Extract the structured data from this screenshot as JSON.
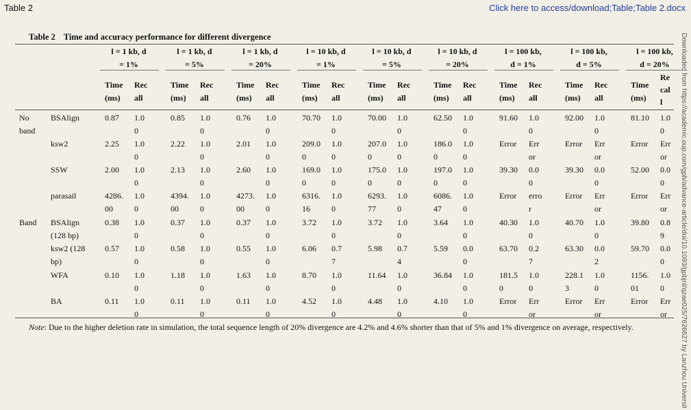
{
  "header": {
    "label": "Table 2",
    "link": "Click here to access/download;Table;Table 2.docx"
  },
  "side_watermark": "Downloaded from https://academic.oup.com/gpb/advance-article/doi/10.1093/gpbjnl/qzae025/7626627 by Lanzhou University user",
  "table": {
    "caption_number": "Table 2",
    "caption_title": "Time and accuracy performance for different divergence",
    "groups": [
      [
        "l = 1 kb, d",
        "= 1%"
      ],
      [
        "l = 1 kb, d",
        "= 5%"
      ],
      [
        "l = 1 kb, d",
        "= 20%"
      ],
      [
        "l = 10 kb, d",
        "= 1%"
      ],
      [
        "l = 10 kb, d",
        "= 5%"
      ],
      [
        "l = 10 kb, d",
        "= 20%"
      ],
      [
        "l = 100 kb,",
        "d = 1%"
      ],
      [
        "l = 100 kb,",
        "d = 5%"
      ],
      [
        "l = 100 kb,",
        "d = 20%"
      ]
    ],
    "time_label": [
      "Time",
      "(ms)"
    ],
    "recall_label": [
      "Rec",
      "all"
    ],
    "recall_label_last": [
      "Re",
      "cal",
      "l"
    ],
    "rows": [
      {
        "category": [
          "No",
          "band"
        ],
        "method": [
          "BSAlign"
        ],
        "cells": [
          [
            [
              "0.87"
            ],
            [
              "1.0",
              "0"
            ]
          ],
          [
            [
              "0.85"
            ],
            [
              "1.0",
              "0"
            ]
          ],
          [
            [
              "0.76"
            ],
            [
              "1.0",
              "0"
            ]
          ],
          [
            [
              "70.70"
            ],
            [
              "1.0",
              "0"
            ]
          ],
          [
            [
              "70.00"
            ],
            [
              "1.0",
              "0"
            ]
          ],
          [
            [
              "62.50"
            ],
            [
              "1.0",
              "0"
            ]
          ],
          [
            [
              "91.60"
            ],
            [
              "1.0",
              "0"
            ]
          ],
          [
            [
              "92.00"
            ],
            [
              "1.0",
              "0"
            ]
          ],
          [
            [
              "81.10"
            ],
            [
              "1.0",
              "0"
            ]
          ]
        ]
      },
      {
        "category": [],
        "method": [
          "ksw2"
        ],
        "cells": [
          [
            [
              "2.25"
            ],
            [
              "1.0",
              "0"
            ]
          ],
          [
            [
              "2.22"
            ],
            [
              "1.0",
              "0"
            ]
          ],
          [
            [
              "2.01"
            ],
            [
              "1.0",
              "0"
            ]
          ],
          [
            [
              "209.0",
              "0"
            ],
            [
              "1.0",
              "0"
            ]
          ],
          [
            [
              "207.0",
              "0"
            ],
            [
              "1.0",
              "0"
            ]
          ],
          [
            [
              "186.0",
              "0"
            ],
            [
              "1.0",
              "0"
            ]
          ],
          [
            [
              "Error"
            ],
            [
              "Err",
              "or"
            ]
          ],
          [
            [
              "Error"
            ],
            [
              "Err",
              "or"
            ]
          ],
          [
            [
              "Error"
            ],
            [
              "Err",
              "or"
            ]
          ]
        ]
      },
      {
        "category": [],
        "method": [
          "SSW"
        ],
        "cells": [
          [
            [
              "2.00"
            ],
            [
              "1.0",
              "0"
            ]
          ],
          [
            [
              "2.13"
            ],
            [
              "1.0",
              "0"
            ]
          ],
          [
            [
              "2.60"
            ],
            [
              "1.0",
              "0"
            ]
          ],
          [
            [
              "169.0",
              "0"
            ],
            [
              "1.0",
              "0"
            ]
          ],
          [
            [
              "175.0",
              "0"
            ],
            [
              "1.0",
              "0"
            ]
          ],
          [
            [
              "197.0",
              "0"
            ],
            [
              "1.0",
              "0"
            ]
          ],
          [
            [
              "39.30"
            ],
            [
              "0.0",
              "0"
            ]
          ],
          [
            [
              "39.30"
            ],
            [
              "0.0",
              "0"
            ]
          ],
          [
            [
              "52.00"
            ],
            [
              "0.0",
              "0"
            ]
          ]
        ]
      },
      {
        "category": [],
        "method": [
          "parasail"
        ],
        "cells": [
          [
            [
              "4286.",
              "00"
            ],
            [
              "1.0",
              "0"
            ]
          ],
          [
            [
              "4394.",
              "00"
            ],
            [
              "1.0",
              "0"
            ]
          ],
          [
            [
              "4273.",
              "00"
            ],
            [
              "1.0",
              "0"
            ]
          ],
          [
            [
              "6316.",
              "16"
            ],
            [
              "1.0",
              "0"
            ]
          ],
          [
            [
              "6293.",
              "77"
            ],
            [
              "1.0",
              "0"
            ]
          ],
          [
            [
              "6086.",
              "47"
            ],
            [
              "1.0",
              "0"
            ]
          ],
          [
            [
              "Error"
            ],
            [
              "erro",
              "r"
            ]
          ],
          [
            [
              "Error"
            ],
            [
              "Err",
              "or"
            ]
          ],
          [
            [
              "Error"
            ],
            [
              "Err",
              "or"
            ]
          ]
        ]
      },
      {
        "category": [
          "Band"
        ],
        "method": [
          "BSAlign",
          "(128 bp)"
        ],
        "cells": [
          [
            [
              "0.38"
            ],
            [
              "1.0",
              "0"
            ]
          ],
          [
            [
              "0.37"
            ],
            [
              "1.0",
              "0"
            ]
          ],
          [
            [
              "0.37"
            ],
            [
              "1.0",
              "0"
            ]
          ],
          [
            [
              "3.72"
            ],
            [
              "1.0",
              "0"
            ]
          ],
          [
            [
              "3.72"
            ],
            [
              "1.0",
              "0"
            ]
          ],
          [
            [
              "3.64"
            ],
            [
              "1.0",
              "0"
            ]
          ],
          [
            [
              "40.30"
            ],
            [
              "1.0",
              "0"
            ]
          ],
          [
            [
              "40.70"
            ],
            [
              "1.0",
              "0"
            ]
          ],
          [
            [
              "39.80"
            ],
            [
              "0.8",
              "9"
            ]
          ]
        ]
      },
      {
        "category": [],
        "method": [
          "ksw2 (128",
          "bp)"
        ],
        "cells": [
          [
            [
              "0.57"
            ],
            [
              "1.0",
              "0"
            ]
          ],
          [
            [
              "0.58"
            ],
            [
              "1.0",
              "0"
            ]
          ],
          [
            [
              "0.55"
            ],
            [
              "1.0",
              "0"
            ]
          ],
          [
            [
              "6.06"
            ],
            [
              "0.7",
              "7"
            ]
          ],
          [
            [
              "5.98"
            ],
            [
              "0.7",
              "4"
            ]
          ],
          [
            [
              "5.59"
            ],
            [
              "0.0",
              "0"
            ]
          ],
          [
            [
              "63.70"
            ],
            [
              "0.2",
              "7"
            ]
          ],
          [
            [
              "63.30"
            ],
            [
              "0.0",
              "2"
            ]
          ],
          [
            [
              "59.70"
            ],
            [
              "0.0",
              "0"
            ]
          ]
        ]
      },
      {
        "category": [],
        "method": [
          "WFA"
        ],
        "cells": [
          [
            [
              "0.10"
            ],
            [
              "1.0",
              "0"
            ]
          ],
          [
            [
              "1.18"
            ],
            [
              "1.0",
              "0"
            ]
          ],
          [
            [
              "1.63"
            ],
            [
              "1.0",
              "0"
            ]
          ],
          [
            [
              "8.70"
            ],
            [
              "1.0",
              "0"
            ]
          ],
          [
            [
              "11.64"
            ],
            [
              "1.0",
              "0"
            ]
          ],
          [
            [
              "36.84"
            ],
            [
              "1.0",
              "0"
            ]
          ],
          [
            [
              "181.5",
              "0"
            ],
            [
              "1.0",
              "0"
            ]
          ],
          [
            [
              "228.1",
              "3"
            ],
            [
              "1.0",
              "0"
            ]
          ],
          [
            [
              "1156.",
              "01"
            ],
            [
              "1.0",
              "0"
            ]
          ]
        ]
      },
      {
        "category": [],
        "method": [
          "BA"
        ],
        "cells": [
          [
            [
              "0.11"
            ],
            [
              "1.0",
              "0"
            ]
          ],
          [
            [
              "0.11"
            ],
            [
              "1.0",
              "0"
            ]
          ],
          [
            [
              "0.11"
            ],
            [
              "1.0",
              "0"
            ]
          ],
          [
            [
              "4.52"
            ],
            [
              "1.0",
              "0"
            ]
          ],
          [
            [
              "4.48"
            ],
            [
              "1.0",
              "0"
            ]
          ],
          [
            [
              "4.10"
            ],
            [
              "1.0",
              "0"
            ]
          ],
          [
            [
              "Error"
            ],
            [
              "Err",
              "or"
            ]
          ],
          [
            [
              "Error"
            ],
            [
              "Err",
              "or"
            ]
          ],
          [
            [
              "Error"
            ],
            [
              "Err",
              "or"
            ]
          ]
        ]
      }
    ],
    "note_label": "Note",
    "note_text": ": Due to the higher deletion rate in simulation, the total sequence length of 20% divergence are 4.2% and 4.6% shorter than that of 5% and 1% divergence on average, respectively."
  }
}
